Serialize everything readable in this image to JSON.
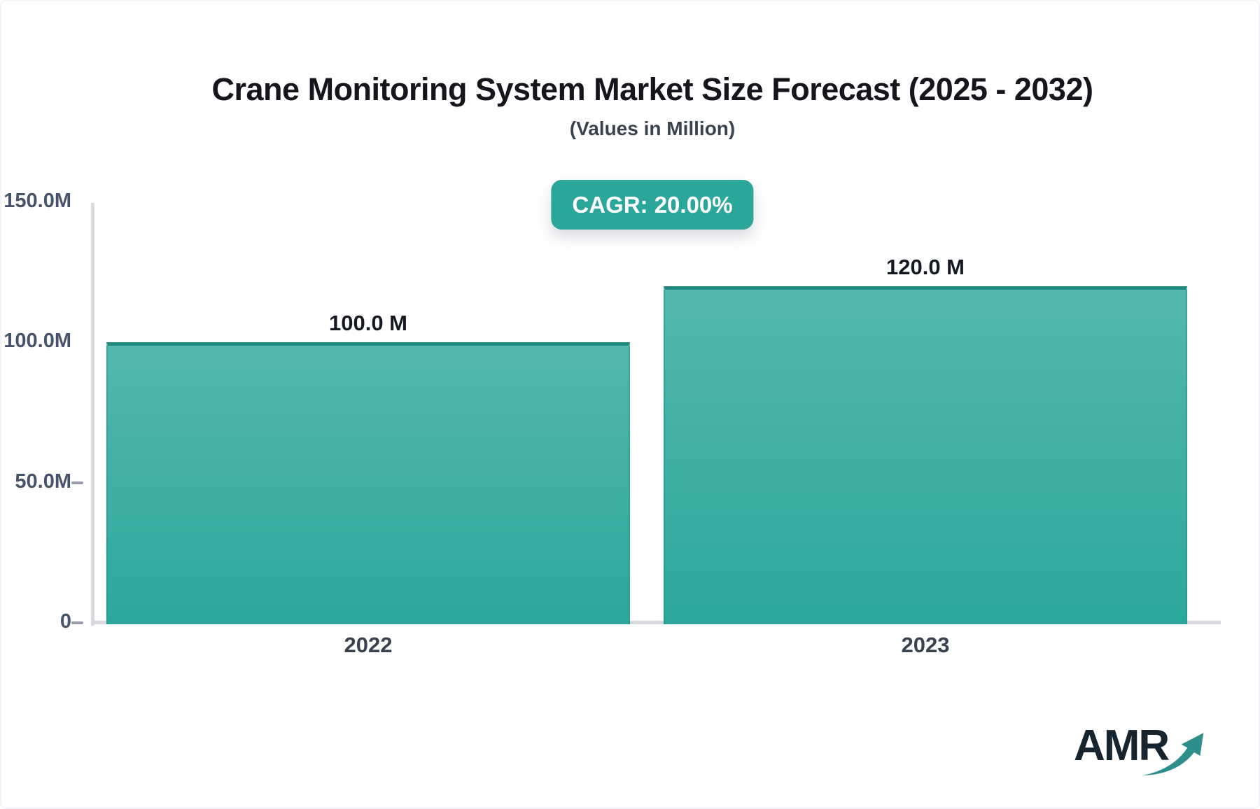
{
  "header": {
    "title": "Crane Monitoring System Market Size Forecast (2025 - 2032)",
    "subtitle": "(Values in Million)"
  },
  "badge": {
    "label": "CAGR: 20.00%",
    "bg_color": "#2aa79a",
    "text_color": "#ffffff"
  },
  "chart_data": {
    "type": "bar",
    "title": "Crane Monitoring System Market Size Forecast (2025 - 2032)",
    "subtitle": "(Values in Million)",
    "cagr": "20.00%",
    "categories": [
      "2022",
      "2023"
    ],
    "values": [
      100.0,
      120.0
    ],
    "value_labels": [
      "100.0 M",
      "120.0 M"
    ],
    "xlabel": "",
    "ylabel": "",
    "ylim": [
      0,
      150
    ],
    "yticks": [
      {
        "value": 150,
        "label": "150.0M",
        "dash": false
      },
      {
        "value": 100,
        "label": "100.0M",
        "dash": false
      },
      {
        "value": 50,
        "label": "50.0M",
        "dash": true
      },
      {
        "value": 0,
        "label": "0",
        "dash": true
      }
    ],
    "grid": false,
    "legend": false,
    "bar_color_top": "#55b7ad",
    "bar_color_bottom": "#2ba89b",
    "bar_edge_color": "#20897f",
    "axis_color": "#d7d9de"
  },
  "logo": {
    "text": "AMR",
    "arrow_color": "#2d8e8c"
  }
}
